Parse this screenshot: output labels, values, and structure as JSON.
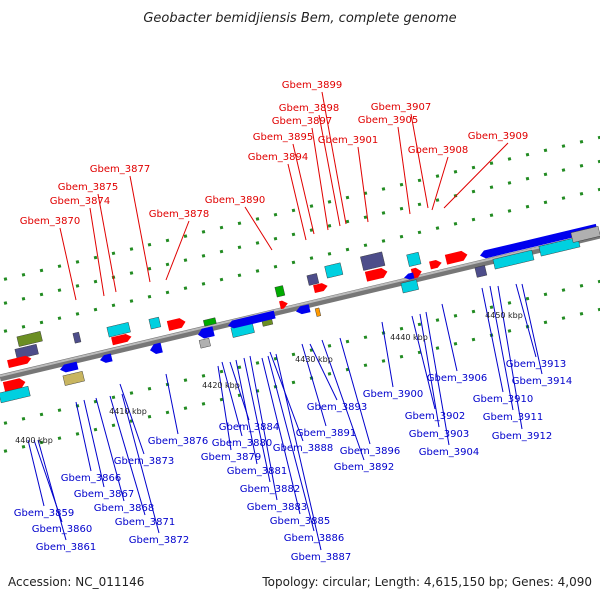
{
  "title": "Geobacter bemidjiensis Bem, complete genome",
  "footer": {
    "accession": "Accession: NC_011146",
    "stats": "Topology: circular; Length: 4,615,150 bp; Genes: 4,090"
  },
  "colors": {
    "forward_label": "#e00000",
    "reverse_label": "#0000cc",
    "forward_gene": "#ff0000",
    "reverse_gene": "#0000ee",
    "backbone": "#888888",
    "tick": "#228b22"
  },
  "scale": [
    "4400 kbp",
    "4410 kbp",
    "4420 kbp",
    "4430 kbp",
    "4440 kbp",
    "4450 kbp"
  ],
  "labels_top": [
    "Gbem_3870",
    "Gbem_3874",
    "Gbem_3875",
    "Gbem_3877",
    "Gbem_3878",
    "Gbem_3890",
    "Gbem_3894",
    "Gbem_3895",
    "Gbem_3897",
    "Gbem_3898",
    "Gbem_3899",
    "Gbem_3901",
    "Gbem_3905",
    "Gbem_3907",
    "Gbem_3908",
    "Gbem_3909"
  ],
  "labels_bottom": [
    "Gbem_3859",
    "Gbem_3860",
    "Gbem_3861",
    "Gbem_3866",
    "Gbem_3867",
    "Gbem_3868",
    "Gbem_3871",
    "Gbem_3872",
    "Gbem_3873",
    "Gbem_3876",
    "Gbem_3879",
    "Gbem_3880",
    "Gbem_3881",
    "Gbem_3882",
    "Gbem_3883",
    "Gbem_3884",
    "Gbem_3885",
    "Gbem_3886",
    "Gbem_3887",
    "Gbem_3888",
    "Gbem_3891",
    "Gbem_3892",
    "Gbem_3893",
    "Gbem_3896",
    "Gbem_3900",
    "Gbem_3902",
    "Gbem_3903",
    "Gbem_3904",
    "Gbem_3906",
    "Gbem_3910",
    "Gbem_3911",
    "Gbem_3912",
    "Gbem_3913",
    "Gbem_3914"
  ]
}
